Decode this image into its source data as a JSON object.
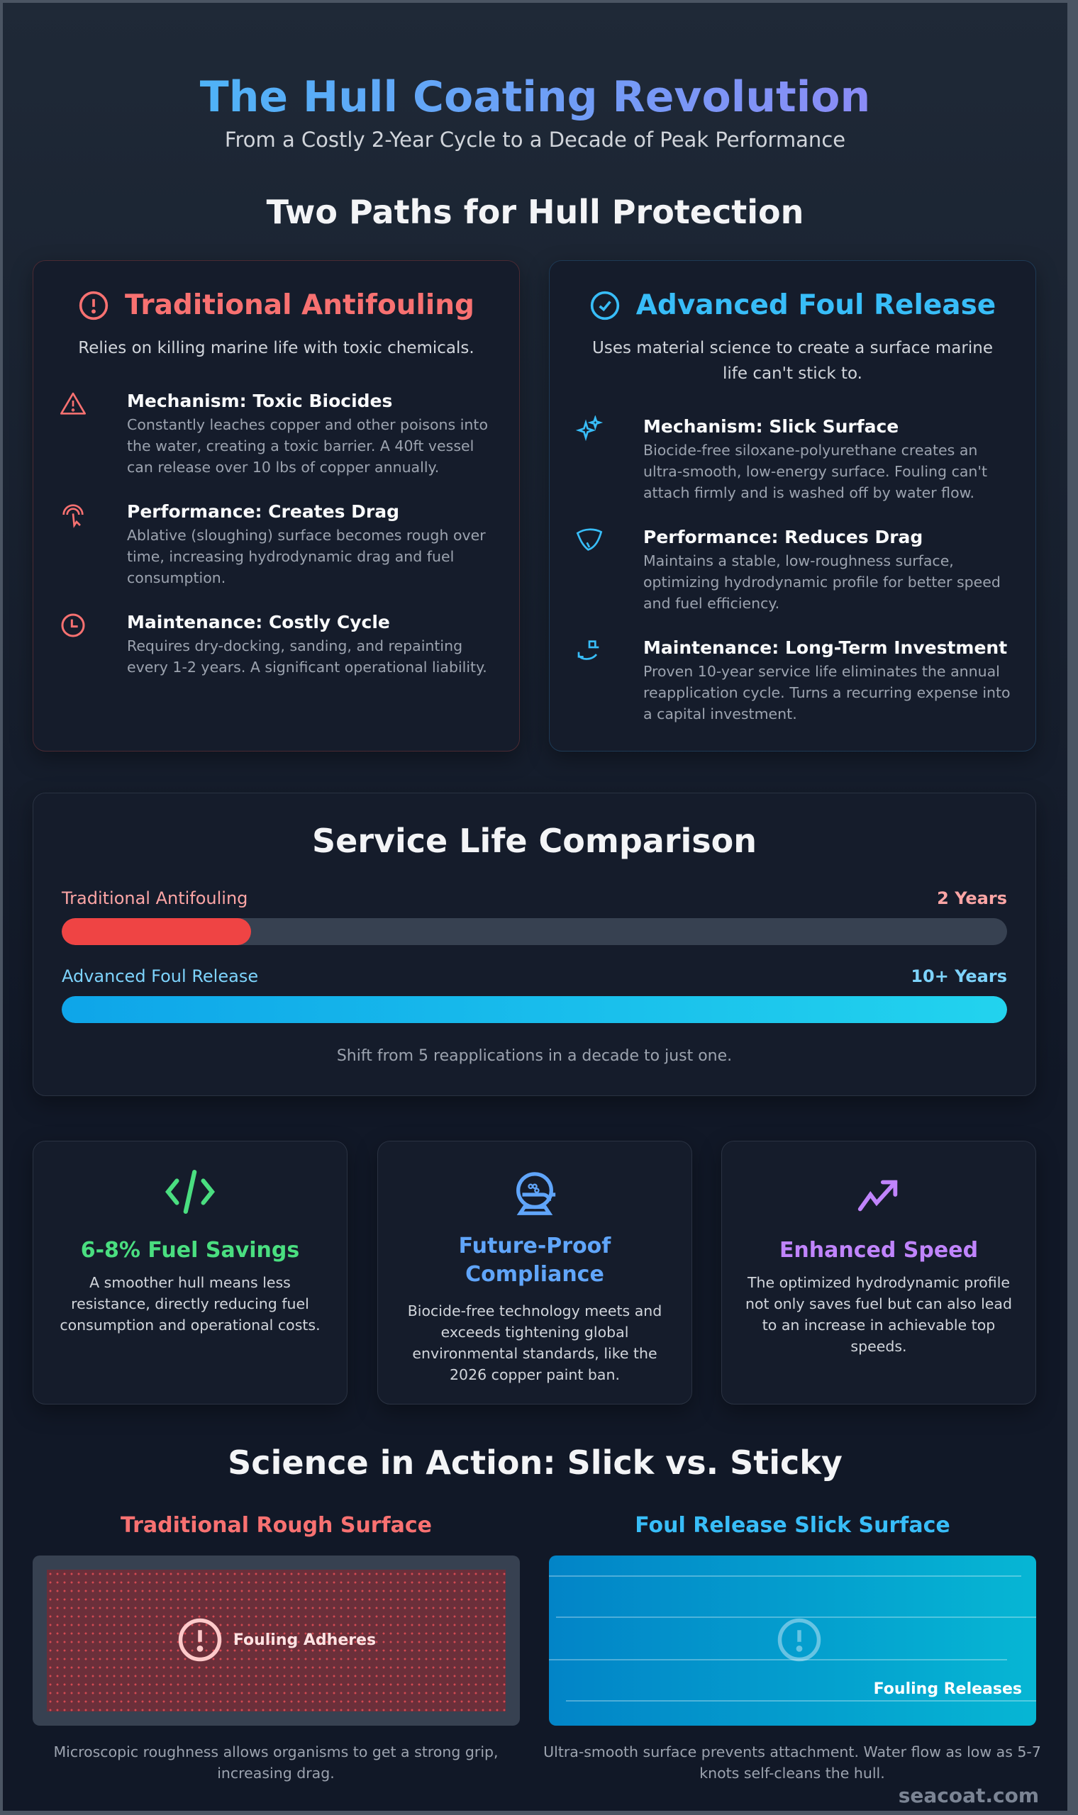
{
  "header": {
    "title": "The Hull Coating Revolution",
    "subtitle": "From a Costly 2-Year Cycle to a Decade of Peak Performance"
  },
  "paths": {
    "heading": "Two Paths for Hull Protection",
    "traditional": {
      "title": "Traditional Antifouling",
      "icon": "alert-circle-icon",
      "color": "#f87171",
      "description": "Relies on killing marine life with toxic chemicals.",
      "items": [
        {
          "icon": "warning-triangle-icon",
          "title": "Mechanism: Toxic Biocides",
          "text": "Constantly leaches copper and other poisons into the water, creating a toxic barrier. A 40ft vessel can release over 10 lbs of copper annually."
        },
        {
          "icon": "touch-pointer-icon",
          "title": "Performance: Creates Drag",
          "text": "Ablative (sloughing) surface becomes rough over time, increasing hydrodynamic drag and fuel consumption."
        },
        {
          "icon": "clock-icon",
          "title": "Maintenance: Costly Cycle",
          "text": "Requires dry-docking, sanding, and repainting every 1-2 years. A significant operational liability."
        }
      ]
    },
    "advanced": {
      "title": "Advanced Foul Release",
      "icon": "check-circle-icon",
      "color": "#38bdf8",
      "description": "Uses material science to create a surface marine life can't stick to.",
      "items": [
        {
          "icon": "sparkles-icon",
          "title": "Mechanism: Slick Surface",
          "text": "Biocide-free siloxane-polyurethane creates an ultra-smooth, low-energy surface. Fouling can't attach firmly and is washed off by water flow."
        },
        {
          "icon": "hull-shape-icon",
          "title": "Performance: Reduces Drag",
          "text": "Maintains a stable, low-roughness surface, optimizing hydrodynamic profile for better speed and fuel efficiency."
        },
        {
          "icon": "investment-cycle-icon",
          "title": "Maintenance: Long-Term Investment",
          "text": "Proven 10-year service life eliminates the annual reapplication cycle. Turns a recurring expense into a capital investment."
        }
      ]
    }
  },
  "service_life": {
    "heading": "Service Life Comparison",
    "bars": [
      {
        "label": "Traditional Antifouling",
        "value_label": "2 Years",
        "fill_percent": 20,
        "color": "#ef4444",
        "label_color": "#fca5a5"
      },
      {
        "label": "Advanced Foul Release",
        "value_label": "10+ Years",
        "fill_percent": 100,
        "color": "#0ea5e9",
        "label_color": "#7dd3fc"
      }
    ],
    "footnote": "Shift from 5 reapplications in a decade to just one."
  },
  "benefits": [
    {
      "icon": "code-icon",
      "title": "6-8% Fuel Savings",
      "color": "#4ade80",
      "text": "A smoother hull means less resistance, directly reducing fuel consumption and operational costs."
    },
    {
      "icon": "helmet-icon",
      "title": "Future-Proof Compliance",
      "color": "#60a5fa",
      "text": "Biocide-free technology meets and exceeds tightening global environmental standards, like the 2026 copper paint ban."
    },
    {
      "icon": "trending-up-icon",
      "title": "Enhanced Speed",
      "color": "#c084fc",
      "text": "The optimized hydrodynamic profile not only saves fuel but can also lead to an increase in achievable top speeds."
    }
  ],
  "science": {
    "heading": "Science in Action: Slick vs. Sticky",
    "rough": {
      "title": "Traditional Rough Surface",
      "badge": "Fouling Adheres",
      "caption": "Microscopic roughness allows organisms to get a strong grip, increasing drag."
    },
    "slick": {
      "title": "Foul Release Slick Surface",
      "badge": "Fouling Releases",
      "caption": "Ultra-smooth surface prevents attachment. Water flow as low as 5-7 knots self-cleans the hull."
    }
  },
  "watermark": "seacoat.com"
}
